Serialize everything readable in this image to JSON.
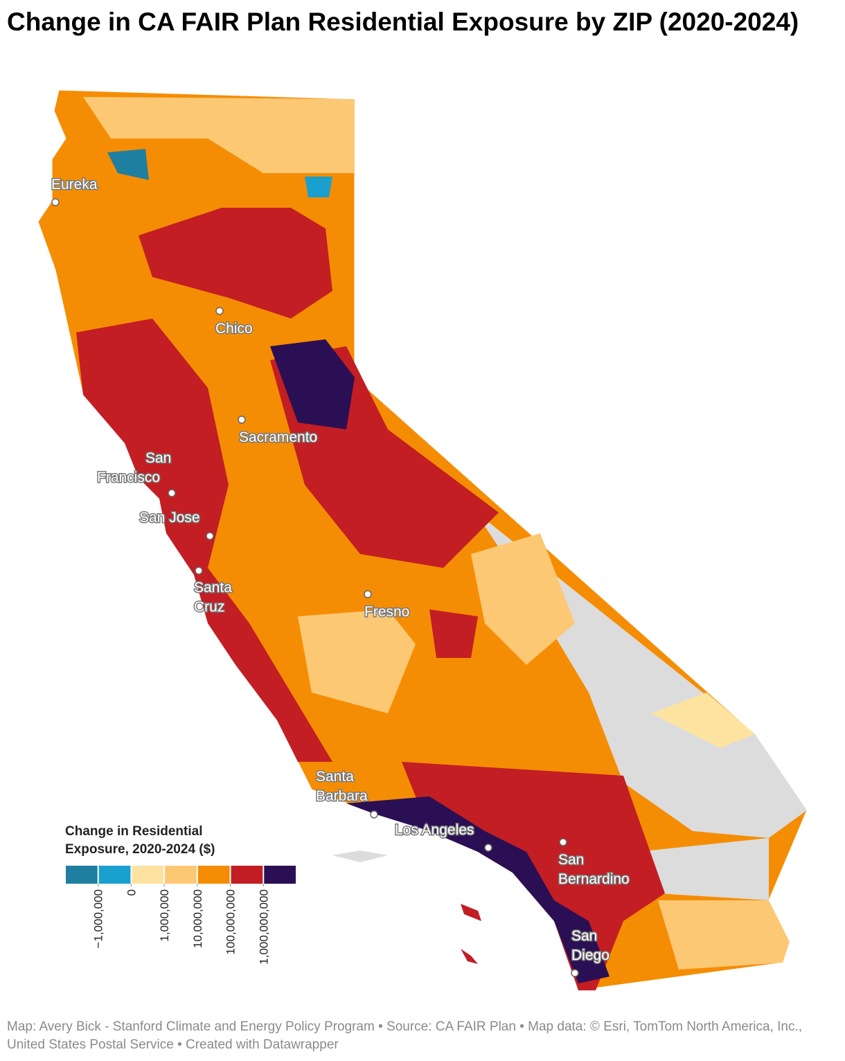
{
  "title": "Change in CA FAIR Plan Residential Exposure by ZIP (2020-2024)",
  "legend": {
    "title": "Change in Residential Exposure, 2020-2024 ($)",
    "colors": [
      "#1f7fa0",
      "#19a0cf",
      "#fee3a0",
      "#fdc874",
      "#f58d04",
      "#c21e23",
      "#2b0f54"
    ],
    "ticks": [
      {
        "value": -1000000,
        "label": "−1,000,000"
      },
      0,
      {
        "value": 1000000,
        "label": "1,000,000"
      },
      {
        "value": 10000000,
        "label": "10,000,000"
      },
      {
        "value": 100000000,
        "label": "100,000,000"
      },
      {
        "value": 1000000000,
        "label": "1,000,000,000"
      }
    ]
  },
  "cities": [
    "Eureka",
    "Chico",
    "Sacramento",
    "San Francisco",
    "San Jose",
    "Santa Cruz",
    "Fresno",
    "Santa Barbara",
    "Los Angeles",
    "San Bernardino",
    "San Diego"
  ],
  "footer": "Map: Avery Bick - Stanford Climate and Energy Policy Program • Source: CA FAIR Plan • Map data: © Esri, TomTom North America, Inc., United States Postal Service  • Created with Datawrapper"
}
